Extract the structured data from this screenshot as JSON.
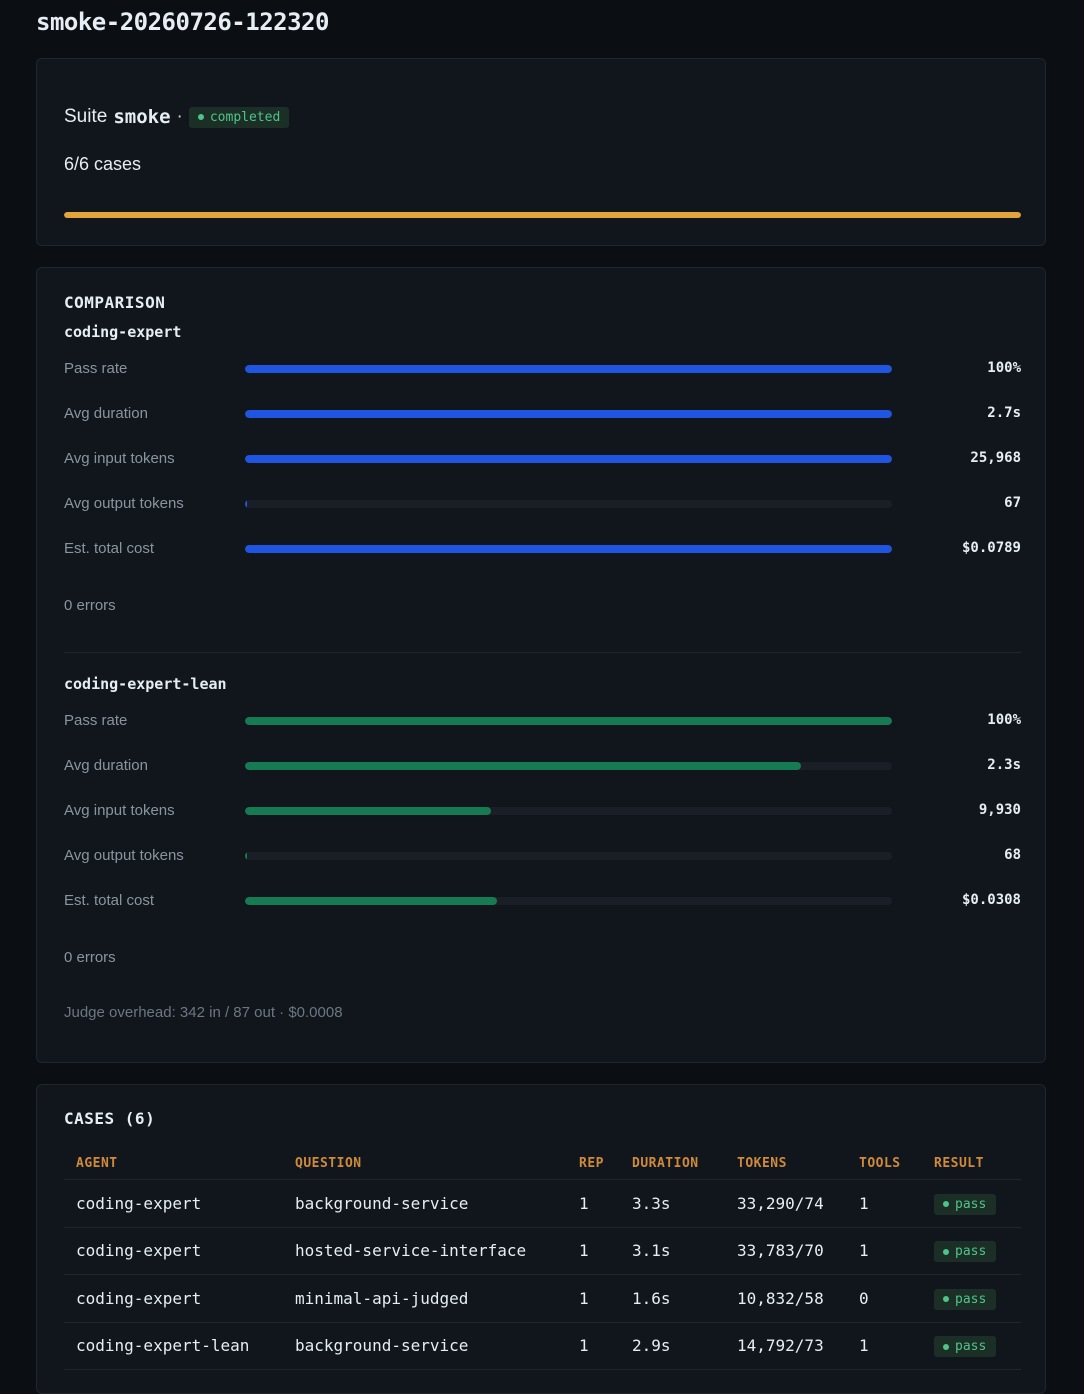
{
  "page_title": "smoke-20260726-122320",
  "summary": {
    "suite_prefix": "Suite",
    "suite_name": "smoke",
    "separator": "·",
    "status": "completed",
    "cases": "6/6 cases",
    "progress_fraction": 1.0,
    "progress_color": "#e3a43b"
  },
  "comparison": {
    "title": "COMPARISON",
    "agents": [
      {
        "name": "coding-expert",
        "color": "#1f55e0",
        "metrics": [
          {
            "label": "Pass rate",
            "value": "100%",
            "fraction": 1.0
          },
          {
            "label": "Avg duration",
            "value": "2.7s",
            "fraction": 1.0
          },
          {
            "label": "Avg input tokens",
            "value": "25,968",
            "fraction": 1.0
          },
          {
            "label": "Avg output tokens",
            "value": "67",
            "fraction": 0.003
          },
          {
            "label": "Est. total cost",
            "value": "$0.0789",
            "fraction": 1.0
          }
        ],
        "errors": "0 errors"
      },
      {
        "name": "coding-expert-lean",
        "color": "#167a52",
        "metrics": [
          {
            "label": "Pass rate",
            "value": "100%",
            "fraction": 1.0
          },
          {
            "label": "Avg duration",
            "value": "2.3s",
            "fraction": 0.86
          },
          {
            "label": "Avg input tokens",
            "value": "9,930",
            "fraction": 0.38
          },
          {
            "label": "Avg output tokens",
            "value": "68",
            "fraction": 0.003
          },
          {
            "label": "Est. total cost",
            "value": "$0.0308",
            "fraction": 0.39
          }
        ],
        "errors": "0 errors"
      }
    ],
    "judge_overhead": "Judge overhead: 342 in / 87 out · $0.0008"
  },
  "cases": {
    "title": "CASES (6)",
    "columns": [
      "AGENT",
      "QUESTION",
      "REP",
      "DURATION",
      "TOKENS",
      "TOOLS",
      "RESULT"
    ],
    "rows": [
      {
        "agent": "coding-expert",
        "question": "background-service",
        "rep": "1",
        "duration": "3.3s",
        "tokens": "33,290/74",
        "tools": "1",
        "result": "pass"
      },
      {
        "agent": "coding-expert",
        "question": "hosted-service-interface",
        "rep": "1",
        "duration": "3.1s",
        "tokens": "33,783/70",
        "tools": "1",
        "result": "pass"
      },
      {
        "agent": "coding-expert",
        "question": "minimal-api-judged",
        "rep": "1",
        "duration": "1.6s",
        "tokens": "10,832/58",
        "tools": "0",
        "result": "pass"
      },
      {
        "agent": "coding-expert-lean",
        "question": "background-service",
        "rep": "1",
        "duration": "2.9s",
        "tokens": "14,792/73",
        "tools": "1",
        "result": "pass"
      }
    ]
  }
}
